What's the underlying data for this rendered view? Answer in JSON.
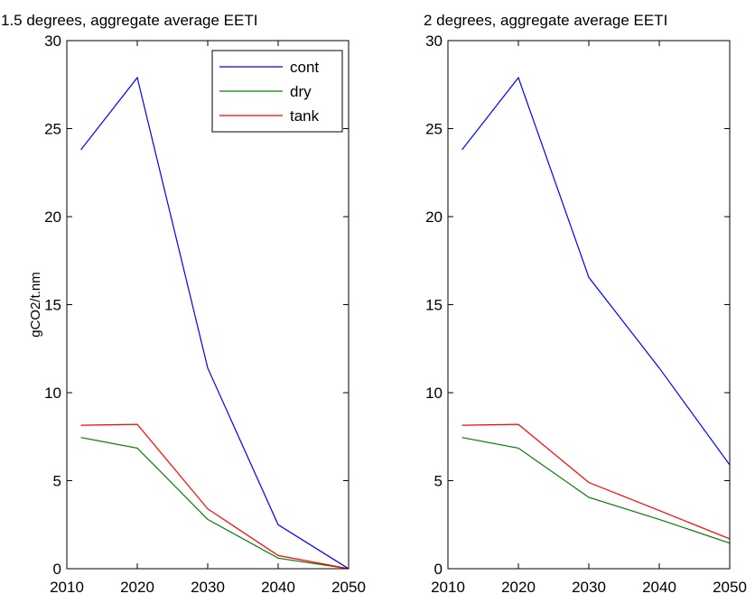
{
  "chart_data": [
    {
      "type": "line",
      "title": "1.5 degrees, aggregate average EETI",
      "xlabel": "",
      "ylabel": "gCO2/t.nm",
      "x": [
        2012,
        2020,
        2030,
        2040,
        2050
      ],
      "xlim": [
        2010,
        2050
      ],
      "ylim": [
        0,
        30
      ],
      "xticks": [
        "2010",
        "2020",
        "2030",
        "2040",
        "2050"
      ],
      "yticks": [
        "0",
        "5",
        "10",
        "15",
        "20",
        "25",
        "30"
      ],
      "grid": false,
      "legend": "top-right",
      "series": [
        {
          "name": "cont",
          "color": "#0000ff",
          "values": [
            23.8,
            27.9,
            11.4,
            2.5,
            0.0
          ]
        },
        {
          "name": "dry",
          "color": "#008000",
          "values": [
            7.45,
            6.85,
            2.8,
            0.6,
            0.0
          ]
        },
        {
          "name": "tank",
          "color": "#ff0000",
          "values": [
            8.15,
            8.2,
            3.4,
            0.75,
            0.0
          ]
        }
      ]
    },
    {
      "type": "line",
      "title": "2 degrees, aggregate average EETI",
      "xlabel": "",
      "ylabel": "",
      "x": [
        2012,
        2020,
        2030,
        2040,
        2050
      ],
      "xlim": [
        2010,
        2050
      ],
      "ylim": [
        0,
        30
      ],
      "xticks": [
        "2010",
        "2020",
        "2030",
        "2040",
        "2050"
      ],
      "yticks": [
        "0",
        "5",
        "10",
        "15",
        "20",
        "25",
        "30"
      ],
      "grid": false,
      "legend": "none",
      "series": [
        {
          "color": "#0000ff",
          "values": [
            23.8,
            27.9,
            16.55,
            11.4,
            5.9
          ]
        },
        {
          "color": "#008000",
          "values": [
            7.45,
            6.85,
            4.05,
            2.8,
            1.45
          ]
        },
        {
          "color": "#ff0000",
          "values": [
            8.15,
            8.2,
            4.9,
            3.3,
            1.7
          ]
        }
      ]
    }
  ]
}
